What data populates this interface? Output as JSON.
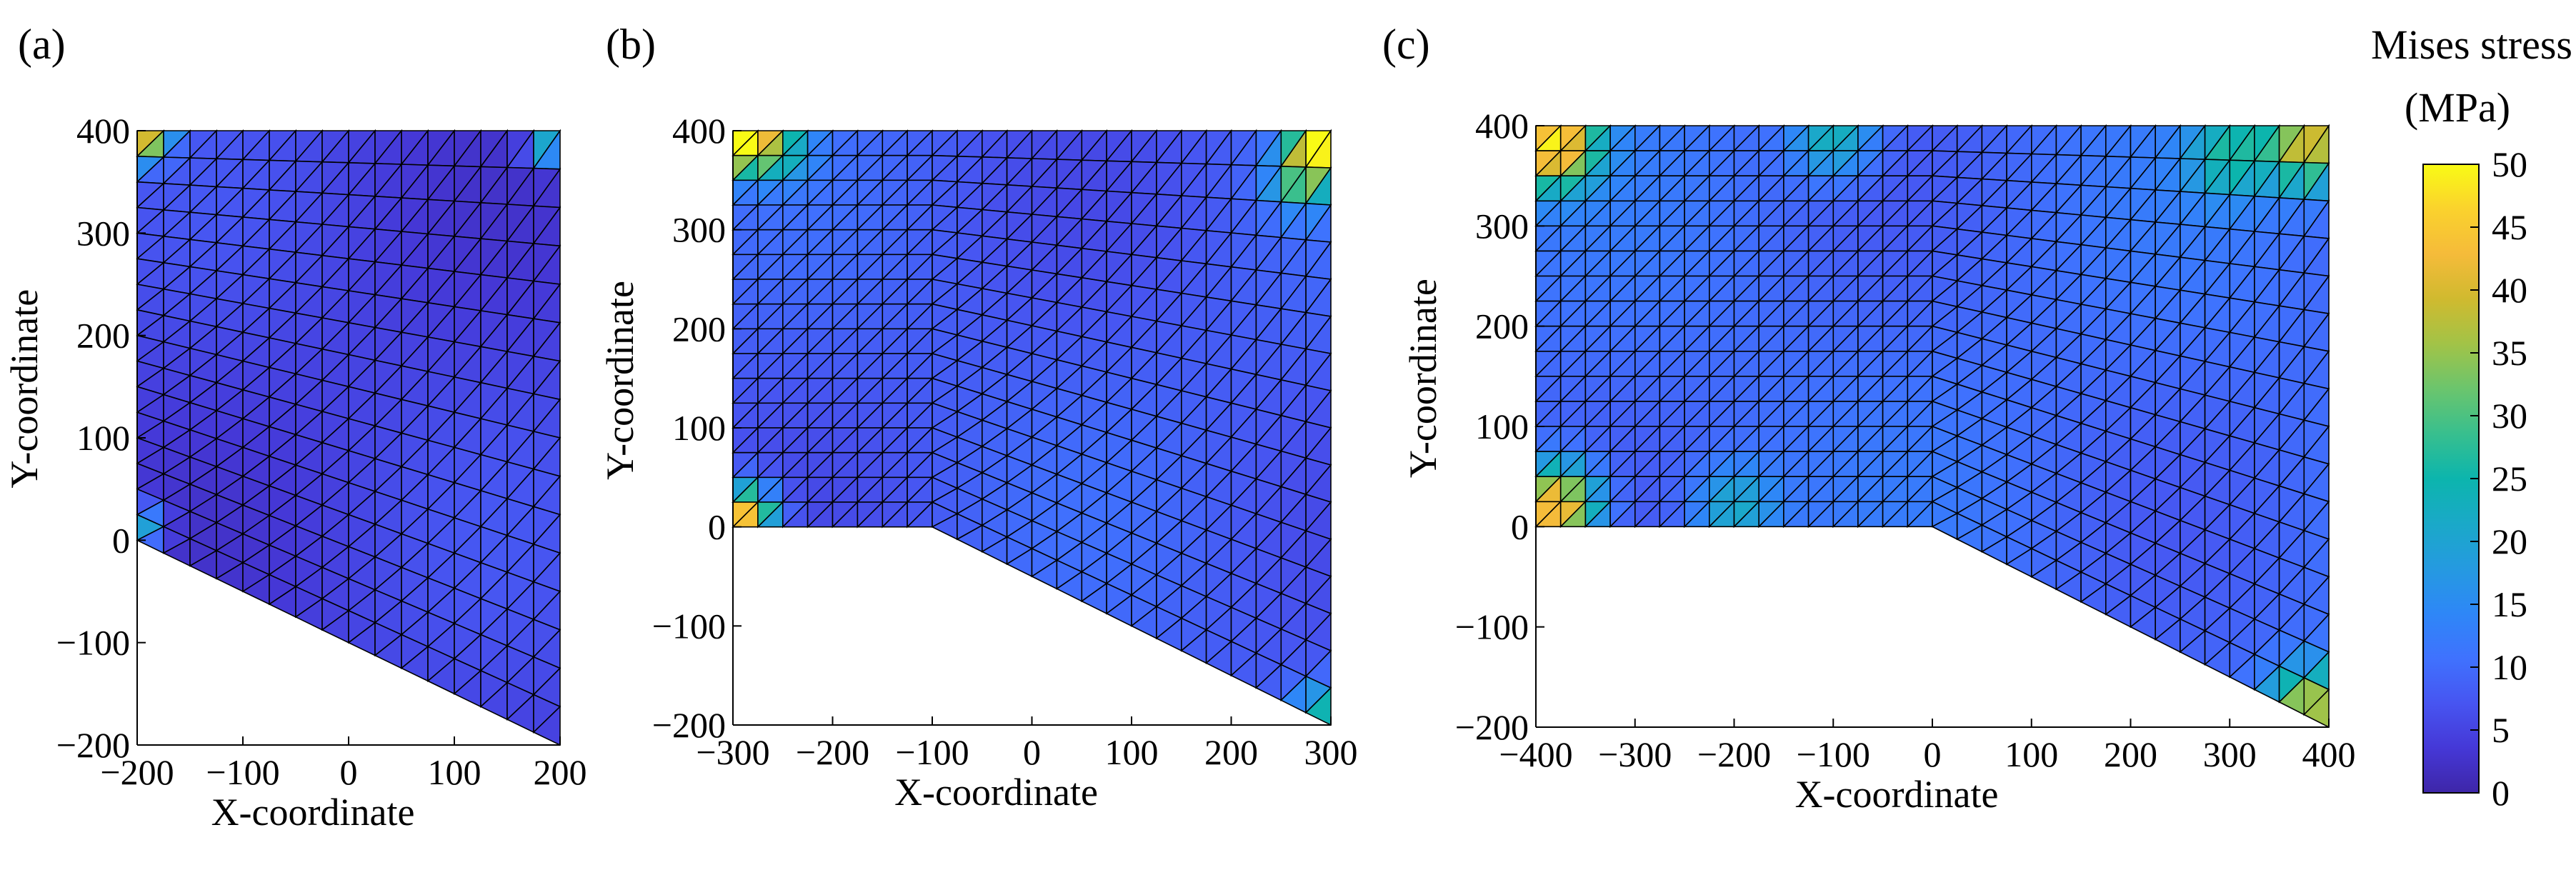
{
  "figure": {
    "colorbar": {
      "title_line1": "Mises stress",
      "title_line2": "(MPa)",
      "min": 0,
      "max": 50,
      "ticks": [
        0,
        5,
        10,
        15,
        20,
        25,
        30,
        35,
        40,
        45,
        50
      ],
      "colormap": [
        "#3e26a8",
        "#4538d7",
        "#4755f1",
        "#3f72fe",
        "#2e87f7",
        "#259ae0",
        "#1aa9c8",
        "#0cb5ad",
        "#38bf8e",
        "#6bc56d",
        "#a2c347",
        "#d0ba2f",
        "#f5bb3a",
        "#fad22d",
        "#f9fb15"
      ]
    }
  },
  "chart_data": [
    {
      "panel": "(a)",
      "type": "heatmap",
      "subtype": "triangular-mesh",
      "xlabel": "X-coordinate",
      "ylabel": "Y-coordinate",
      "xlim": [
        -200,
        200
      ],
      "ylim": [
        -200,
        400
      ],
      "xticks": [
        -200,
        -100,
        0,
        100,
        200
      ],
      "yticks": [
        -200,
        -100,
        0,
        100,
        200,
        300,
        400
      ],
      "boundary": [
        [
          -200,
          400
        ],
        [
          200,
          400
        ],
        [
          200,
          -200
        ],
        [
          -200,
          0
        ]
      ],
      "mesh": {
        "nx": 16,
        "ny": 16,
        "x0": -200,
        "x1": 200,
        "y_top": 400,
        "y_bottom_left": 0,
        "y_bottom_right": -200
      },
      "typical_stress": 5,
      "hotspots": [
        {
          "x": -190,
          "y": 390,
          "value": 38
        },
        {
          "x": 190,
          "y": 390,
          "value": 25
        },
        {
          "x": -195,
          "y": 15,
          "value": 22
        }
      ]
    },
    {
      "panel": "(b)",
      "type": "heatmap",
      "subtype": "triangular-mesh",
      "xlabel": "X-coordinate",
      "ylabel": "Y-coordinate",
      "xlim": [
        -300,
        300
      ],
      "ylim": [
        -200,
        400
      ],
      "xticks": [
        -300,
        -200,
        -100,
        0,
        100,
        200,
        300
      ],
      "yticks": [
        -200,
        -100,
        0,
        100,
        200,
        300,
        400
      ],
      "boundary": [
        [
          -300,
          400
        ],
        [
          300,
          400
        ],
        [
          300,
          -200
        ],
        [
          -100,
          0
        ],
        [
          -300,
          0
        ]
      ],
      "mesh": {
        "nx": 24,
        "ny": 16,
        "x0": -300,
        "x1": 300,
        "y_top": 400,
        "y_bottom_left": 0,
        "y_bottom_right": -200,
        "bend_x": -100
      },
      "typical_stress": 8,
      "hotspots": [
        {
          "x": -290,
          "y": 390,
          "value": 50
        },
        {
          "x": 290,
          "y": 390,
          "value": 50
        },
        {
          "x": -290,
          "y": 10,
          "value": 48
        },
        {
          "x": -250,
          "y": 380,
          "value": 22
        },
        {
          "x": 270,
          "y": 350,
          "value": 28
        },
        {
          "x": 290,
          "y": -190,
          "value": 25
        }
      ]
    },
    {
      "panel": "(c)",
      "type": "heatmap",
      "subtype": "triangular-mesh",
      "xlabel": "X-coordinate",
      "ylabel": "Y-coordinate",
      "xlim": [
        -400,
        400
      ],
      "ylim": [
        -200,
        400
      ],
      "xticks": [
        -400,
        -300,
        -200,
        -100,
        0,
        100,
        200,
        300,
        400
      ],
      "yticks": [
        -200,
        -100,
        0,
        100,
        200,
        300,
        400
      ],
      "boundary": [
        [
          -400,
          400
        ],
        [
          400,
          400
        ],
        [
          400,
          -200
        ],
        [
          0,
          0
        ],
        [
          -400,
          0
        ]
      ],
      "mesh": {
        "nx": 32,
        "ny": 16,
        "x0": -400,
        "x1": 400,
        "y_top": 400,
        "y_bottom_left": 0,
        "y_bottom_right": -200,
        "bend_x": 0
      },
      "typical_stress": 10,
      "hotspots": [
        {
          "x": -380,
          "y": 380,
          "value": 48
        },
        {
          "x": -380,
          "y": 20,
          "value": 48
        },
        {
          "x": 380,
          "y": 380,
          "value": 40
        },
        {
          "x": 380,
          "y": -180,
          "value": 38
        },
        {
          "x": -200,
          "y": 20,
          "value": 22
        },
        {
          "x": -100,
          "y": 390,
          "value": 25
        },
        {
          "x": 300,
          "y": 370,
          "value": 25
        }
      ]
    }
  ]
}
